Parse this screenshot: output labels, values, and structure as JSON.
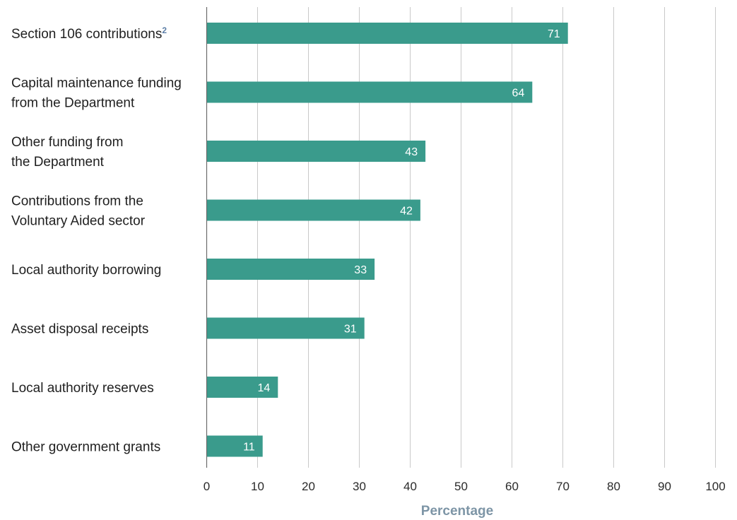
{
  "chart_data": {
    "type": "bar",
    "orientation": "horizontal",
    "categories": [
      {
        "lines": [
          "Section 106 contributions"
        ],
        "superscript": "2"
      },
      {
        "lines": [
          "Capital maintenance funding",
          "from the Department"
        ]
      },
      {
        "lines": [
          "Other funding from",
          "the Department"
        ]
      },
      {
        "lines": [
          "Contributions from the",
          "Voluntary Aided sector"
        ]
      },
      {
        "lines": [
          "Local authority borrowing"
        ]
      },
      {
        "lines": [
          "Asset disposal receipts"
        ]
      },
      {
        "lines": [
          "Local authority reserves"
        ]
      },
      {
        "lines": [
          "Other government grants"
        ]
      }
    ],
    "values": [
      71,
      64,
      43,
      42,
      33,
      31,
      14,
      11
    ],
    "xlabel": "Percentage",
    "ylabel": "",
    "xlim": [
      0,
      100
    ],
    "xticks": [
      0,
      10,
      20,
      30,
      40,
      50,
      60,
      70,
      80,
      90,
      100
    ],
    "grid": "vertical",
    "data_labels": "inside-end",
    "colors": {
      "bar": "#3a9b8c",
      "grid": "#c9c9c9",
      "axis": "#6b6b6b",
      "axis_title": "#7d95a6",
      "superscript": "#5d7fa8",
      "bar_label": "#ffffff",
      "text": "#1f1f1f"
    }
  }
}
